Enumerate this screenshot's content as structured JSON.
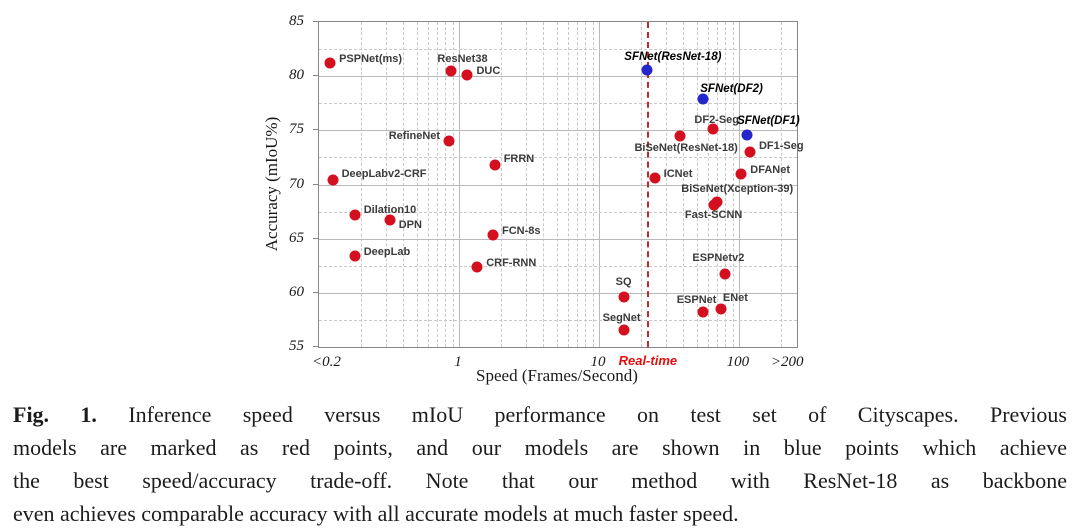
{
  "figure": {
    "caption": {
      "fig_label": "Fig. 1.",
      "line1": "Inference speed versus mIoU performance on test set of Cityscapes. Previous",
      "line2": "models are marked as red points, and our models are shown in blue points which achieve",
      "line3": "the best speed/accuracy trade-off. Note that our method with ResNet-18 as backbone",
      "line4": "even achieves comparable accuracy with all accurate models at much faster speed."
    }
  },
  "chart_data": {
    "type": "scatter",
    "title": "",
    "xlabel": "Speed (Frames/Second)",
    "ylabel": "Accuracy (mIoU%)",
    "x_scale": "log",
    "xlim": [
      0.1,
      260
    ],
    "ylim": [
      55,
      85
    ],
    "grid": true,
    "x_ticks": [
      {
        "label": "<0.2",
        "v": 0.115
      },
      {
        "label": "1",
        "v": 1
      },
      {
        "label": "10",
        "v": 10
      },
      {
        "label": "100",
        "v": 100
      },
      {
        "label": ">200",
        "v": 225
      }
    ],
    "y_ticks": [
      55,
      60,
      65,
      70,
      75,
      80,
      85
    ],
    "realtime_marker": {
      "label": "Real-time",
      "v": 22,
      "line_color": "#bf2b2b",
      "text_color": "#e01010"
    },
    "colors": {
      "previous_models": "#d41020",
      "our_models": "#2525cc"
    },
    "series": [
      {
        "name": "Previous models (red points)",
        "color_key": "previous_models",
        "points": [
          {
            "label": "PSPNet(ms)",
            "speed": 0.12,
            "miou": 81.2,
            "lp": "right",
            "dx": 0,
            "dy": -4
          },
          {
            "label": "ResNet38",
            "speed": 0.87,
            "miou": 80.5,
            "lp": "above",
            "dx": 12,
            "dy": 1
          },
          {
            "label": "DUC",
            "speed": 1.15,
            "miou": 80.1,
            "lp": "right",
            "dx": 0,
            "dy": -4
          },
          {
            "label": "RefineNet",
            "speed": 0.85,
            "miou": 74.0,
            "lp": "left",
            "dx": 0,
            "dy": -5
          },
          {
            "label": "FRRN",
            "speed": 1.8,
            "miou": 71.8,
            "lp": "right",
            "dx": 0,
            "dy": -6
          },
          {
            "label": "DeepLabv2-CRF",
            "speed": 0.125,
            "miou": 70.4,
            "lp": "right",
            "dx": 0,
            "dy": -6
          },
          {
            "label": "Dilation10",
            "speed": 0.18,
            "miou": 67.2,
            "lp": "right",
            "dx": 0,
            "dy": -5
          },
          {
            "label": "DPN",
            "speed": 0.32,
            "miou": 66.7,
            "lp": "right",
            "dx": 0,
            "dy": 5
          },
          {
            "label": "FCN-8s",
            "speed": 1.75,
            "miou": 65.3,
            "lp": "right",
            "dx": 0,
            "dy": -4
          },
          {
            "label": "DeepLab",
            "speed": 0.18,
            "miou": 63.4,
            "lp": "right",
            "dx": 0,
            "dy": -4
          },
          {
            "label": "CRF-RNN",
            "speed": 1.35,
            "miou": 62.4,
            "lp": "right",
            "dx": 0,
            "dy": -4
          },
          {
            "label": "SQ",
            "speed": 15,
            "miou": 59.6,
            "lp": "above",
            "dx": 0,
            "dy": -2
          },
          {
            "label": "SegNet",
            "speed": 15,
            "miou": 56.6,
            "lp": "above",
            "dx": -2,
            "dy": 1
          },
          {
            "label": "ESPNet",
            "speed": 55,
            "miou": 58.2,
            "lp": "above",
            "dx": -6,
            "dy": 1
          },
          {
            "label": "ENet",
            "speed": 75,
            "miou": 58.5,
            "lp": "above",
            "dx": 14,
            "dy": 2
          },
          {
            "label": "ESPNetv2",
            "speed": 80,
            "miou": 61.7,
            "lp": "above",
            "dx": -7,
            "dy": -3
          },
          {
            "label": "ICNet",
            "speed": 25,
            "miou": 70.6,
            "lp": "right",
            "dx": 0,
            "dy": -4
          },
          {
            "label": "DFANet",
            "speed": 104,
            "miou": 71.0,
            "lp": "right",
            "dx": 0,
            "dy": -4
          },
          {
            "label": "BiSeNet(ResNet-18)",
            "speed": 38,
            "miou": 74.5,
            "lp": "below",
            "dx": 6,
            "dy": -1
          },
          {
            "label": "BiSeNet(Xception-39)",
            "speed": 70,
            "miou": 68.4,
            "lp": "above",
            "dx": 20,
            "dy": 0
          },
          {
            "label": "Fast-SCNN",
            "speed": 66,
            "miou": 68.1,
            "lp": "below",
            "dx": 0,
            "dy": -3
          },
          {
            "label": "DF2-Seg",
            "speed": 65,
            "miou": 75.1,
            "lp": "above",
            "dx": 4,
            "dy": 4
          },
          {
            "label": "DF1-Seg",
            "speed": 120,
            "miou": 73.0,
            "lp": "right",
            "dx": 0,
            "dy": -6
          }
        ]
      },
      {
        "name": "Our models (blue points)",
        "color_key": "our_models",
        "points": [
          {
            "label": "SFNet(ResNet-18)",
            "speed": 22,
            "miou": 80.6,
            "lp": "above",
            "dx": 26,
            "dy": 0
          },
          {
            "label": "SFNet(DF2)",
            "speed": 55,
            "miou": 77.9,
            "lp": "above",
            "dx": 29,
            "dy": 3
          },
          {
            "label": "SFNet(DF1)",
            "speed": 115,
            "miou": 74.6,
            "lp": "above",
            "dx": 21,
            "dy": -1
          }
        ]
      }
    ]
  }
}
